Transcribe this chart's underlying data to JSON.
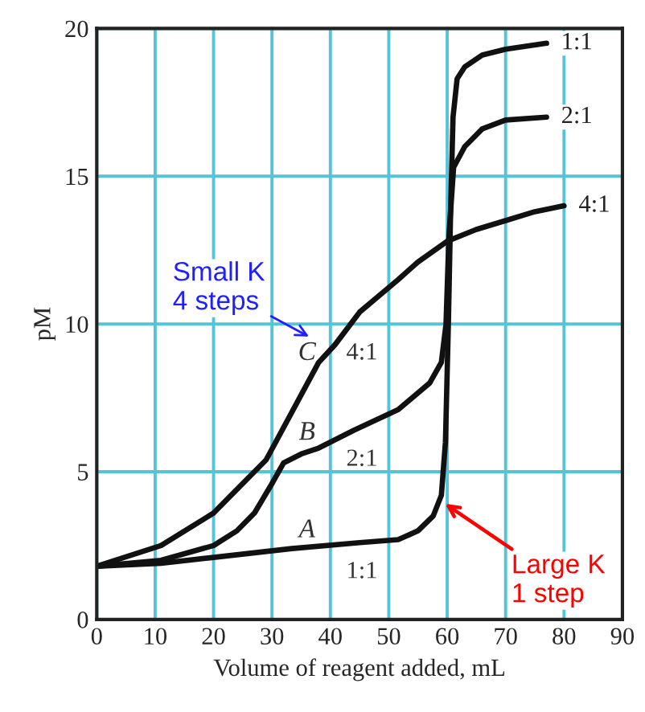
{
  "chart_data": {
    "type": "line",
    "xlabel": "Volume of reagent added, mL",
    "ylabel": "pM",
    "xlim": [
      0,
      90
    ],
    "xticks": [
      0,
      10,
      20,
      30,
      40,
      50,
      60,
      70,
      80,
      90
    ],
    "ylim": [
      0,
      20
    ],
    "yticks": [
      0,
      5,
      10,
      15,
      20
    ],
    "grid": true,
    "legend": false,
    "marker": "none",
    "line_style": "solid",
    "series": [
      {
        "name": "1:1",
        "color": "#111111",
        "x": [
          0,
          11,
          20,
          33.4,
          45,
          51.6,
          55,
          57.6,
          59,
          59.7,
          60.2,
          60.6,
          61,
          61.7,
          63,
          66,
          70,
          77
        ],
        "values": [
          1.8,
          1.9,
          2.1,
          2.4,
          2.6,
          2.7,
          3.0,
          3.5,
          4.2,
          6,
          10,
          14,
          17,
          18.3,
          18.7,
          19.1,
          19.3,
          19.5
        ]
      },
      {
        "name": "2:1",
        "color": "#111111",
        "x": [
          0,
          11,
          20,
          24,
          27,
          30,
          32,
          35,
          38,
          44,
          51.6,
          57,
          59,
          59.8,
          60.3,
          61.1,
          63,
          66,
          70,
          77
        ],
        "values": [
          1.8,
          2.0,
          2.5,
          3.0,
          3.6,
          4.6,
          5.3,
          5.6,
          5.8,
          6.4,
          7.1,
          8.0,
          8.7,
          10,
          13,
          15.3,
          16.0,
          16.6,
          16.9,
          17.0
        ]
      },
      {
        "name": "4:1",
        "color": "#111111",
        "x": [
          0,
          11,
          20,
          29,
          38,
          40.8,
          45,
          51.6,
          55,
          60,
          65,
          70,
          75,
          80
        ],
        "values": [
          1.8,
          2.5,
          3.6,
          5.4,
          8.7,
          9.3,
          10.4,
          11.5,
          12.1,
          12.8,
          13.2,
          13.5,
          13.8,
          14.0
        ]
      }
    ],
    "annotations": [
      "C",
      "4:1",
      "B",
      "2:1",
      "A",
      "1:1",
      "Small K\n4 steps",
      "Large K\n1 step"
    ]
  }
}
